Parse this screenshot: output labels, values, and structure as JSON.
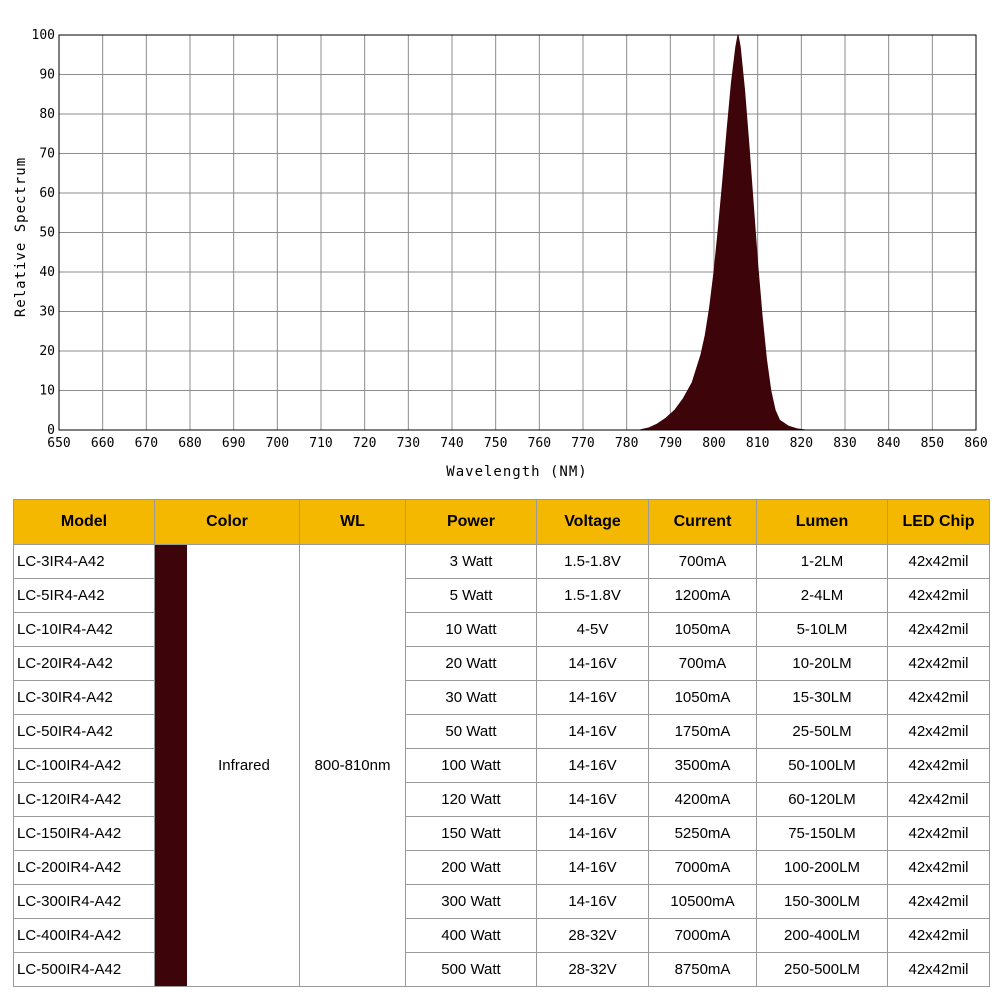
{
  "chart_data": {
    "type": "area",
    "xlabel": "Wavelength (NM)",
    "ylabel": "Relative Spectrum",
    "xlim": [
      650,
      860
    ],
    "ylim": [
      0,
      100
    ],
    "x_ticks": [
      650,
      660,
      670,
      680,
      690,
      700,
      710,
      720,
      730,
      740,
      750,
      760,
      770,
      780,
      790,
      800,
      810,
      820,
      830,
      840,
      850,
      860
    ],
    "y_ticks": [
      0,
      10,
      20,
      30,
      40,
      50,
      60,
      70,
      80,
      90,
      100
    ],
    "grid": true,
    "fill_color": "#3d0409",
    "series": [
      {
        "x": [
          783,
          785,
          787,
          789,
          791,
          793,
          795,
          797,
          798,
          799,
          800,
          801,
          802,
          803,
          804,
          805,
          805.5,
          806,
          807,
          808,
          809,
          810,
          811,
          812,
          813,
          814,
          815,
          817,
          819,
          821
        ],
        "values": [
          0,
          0.5,
          1.5,
          3,
          5,
          8,
          12,
          19,
          24,
          31,
          40,
          51,
          63,
          76,
          88,
          97,
          100,
          97,
          86,
          72,
          57,
          42,
          29,
          18,
          10,
          5,
          2.5,
          1,
          0.3,
          0
        ]
      }
    ]
  },
  "table": {
    "headers": [
      "Model",
      "Color",
      "WL",
      "Power",
      "Voltage",
      "Current",
      "Lumen",
      "LED Chip"
    ],
    "color_swatch": "#3d0409",
    "color_name": "Infrared",
    "wavelength": "800-810nm",
    "rows": [
      {
        "model": "LC-3IR4-A42",
        "power": "3 Watt",
        "voltage": "1.5-1.8V",
        "current": "700mA",
        "lumen": "1-2LM",
        "chip": "42x42mil"
      },
      {
        "model": "LC-5IR4-A42",
        "power": "5 Watt",
        "voltage": "1.5-1.8V",
        "current": "1200mA",
        "lumen": "2-4LM",
        "chip": "42x42mil"
      },
      {
        "model": "LC-10IR4-A42",
        "power": "10 Watt",
        "voltage": "4-5V",
        "current": "1050mA",
        "lumen": "5-10LM",
        "chip": "42x42mil"
      },
      {
        "model": "LC-20IR4-A42",
        "power": "20 Watt",
        "voltage": "14-16V",
        "current": "700mA",
        "lumen": "10-20LM",
        "chip": "42x42mil"
      },
      {
        "model": "LC-30IR4-A42",
        "power": "30 Watt",
        "voltage": "14-16V",
        "current": "1050mA",
        "lumen": "15-30LM",
        "chip": "42x42mil"
      },
      {
        "model": "LC-50IR4-A42",
        "power": "50 Watt",
        "voltage": "14-16V",
        "current": "1750mA",
        "lumen": "25-50LM",
        "chip": "42x42mil"
      },
      {
        "model": "LC-100IR4-A42",
        "power": "100 Watt",
        "voltage": "14-16V",
        "current": "3500mA",
        "lumen": "50-100LM",
        "chip": "42x42mil"
      },
      {
        "model": "LC-120IR4-A42",
        "power": "120 Watt",
        "voltage": "14-16V",
        "current": "4200mA",
        "lumen": "60-120LM",
        "chip": "42x42mil"
      },
      {
        "model": "LC-150IR4-A42",
        "power": "150 Watt",
        "voltage": "14-16V",
        "current": "5250mA",
        "lumen": "75-150LM",
        "chip": "42x42mil"
      },
      {
        "model": "LC-200IR4-A42",
        "power": "200 Watt",
        "voltage": "14-16V",
        "current": "7000mA",
        "lumen": "100-200LM",
        "chip": "42x42mil"
      },
      {
        "model": "LC-300IR4-A42",
        "power": "300 Watt",
        "voltage": "14-16V",
        "current": "10500mA",
        "lumen": "150-300LM",
        "chip": "42x42mil"
      },
      {
        "model": "LC-400IR4-A42",
        "power": "400 Watt",
        "voltage": "28-32V",
        "current": "7000mA",
        "lumen": "200-400LM",
        "chip": "42x42mil"
      },
      {
        "model": "LC-500IR4-A42",
        "power": "500 Watt",
        "voltage": "28-32V",
        "current": "8750mA",
        "lumen": "250-500LM",
        "chip": "42x42mil"
      }
    ]
  }
}
